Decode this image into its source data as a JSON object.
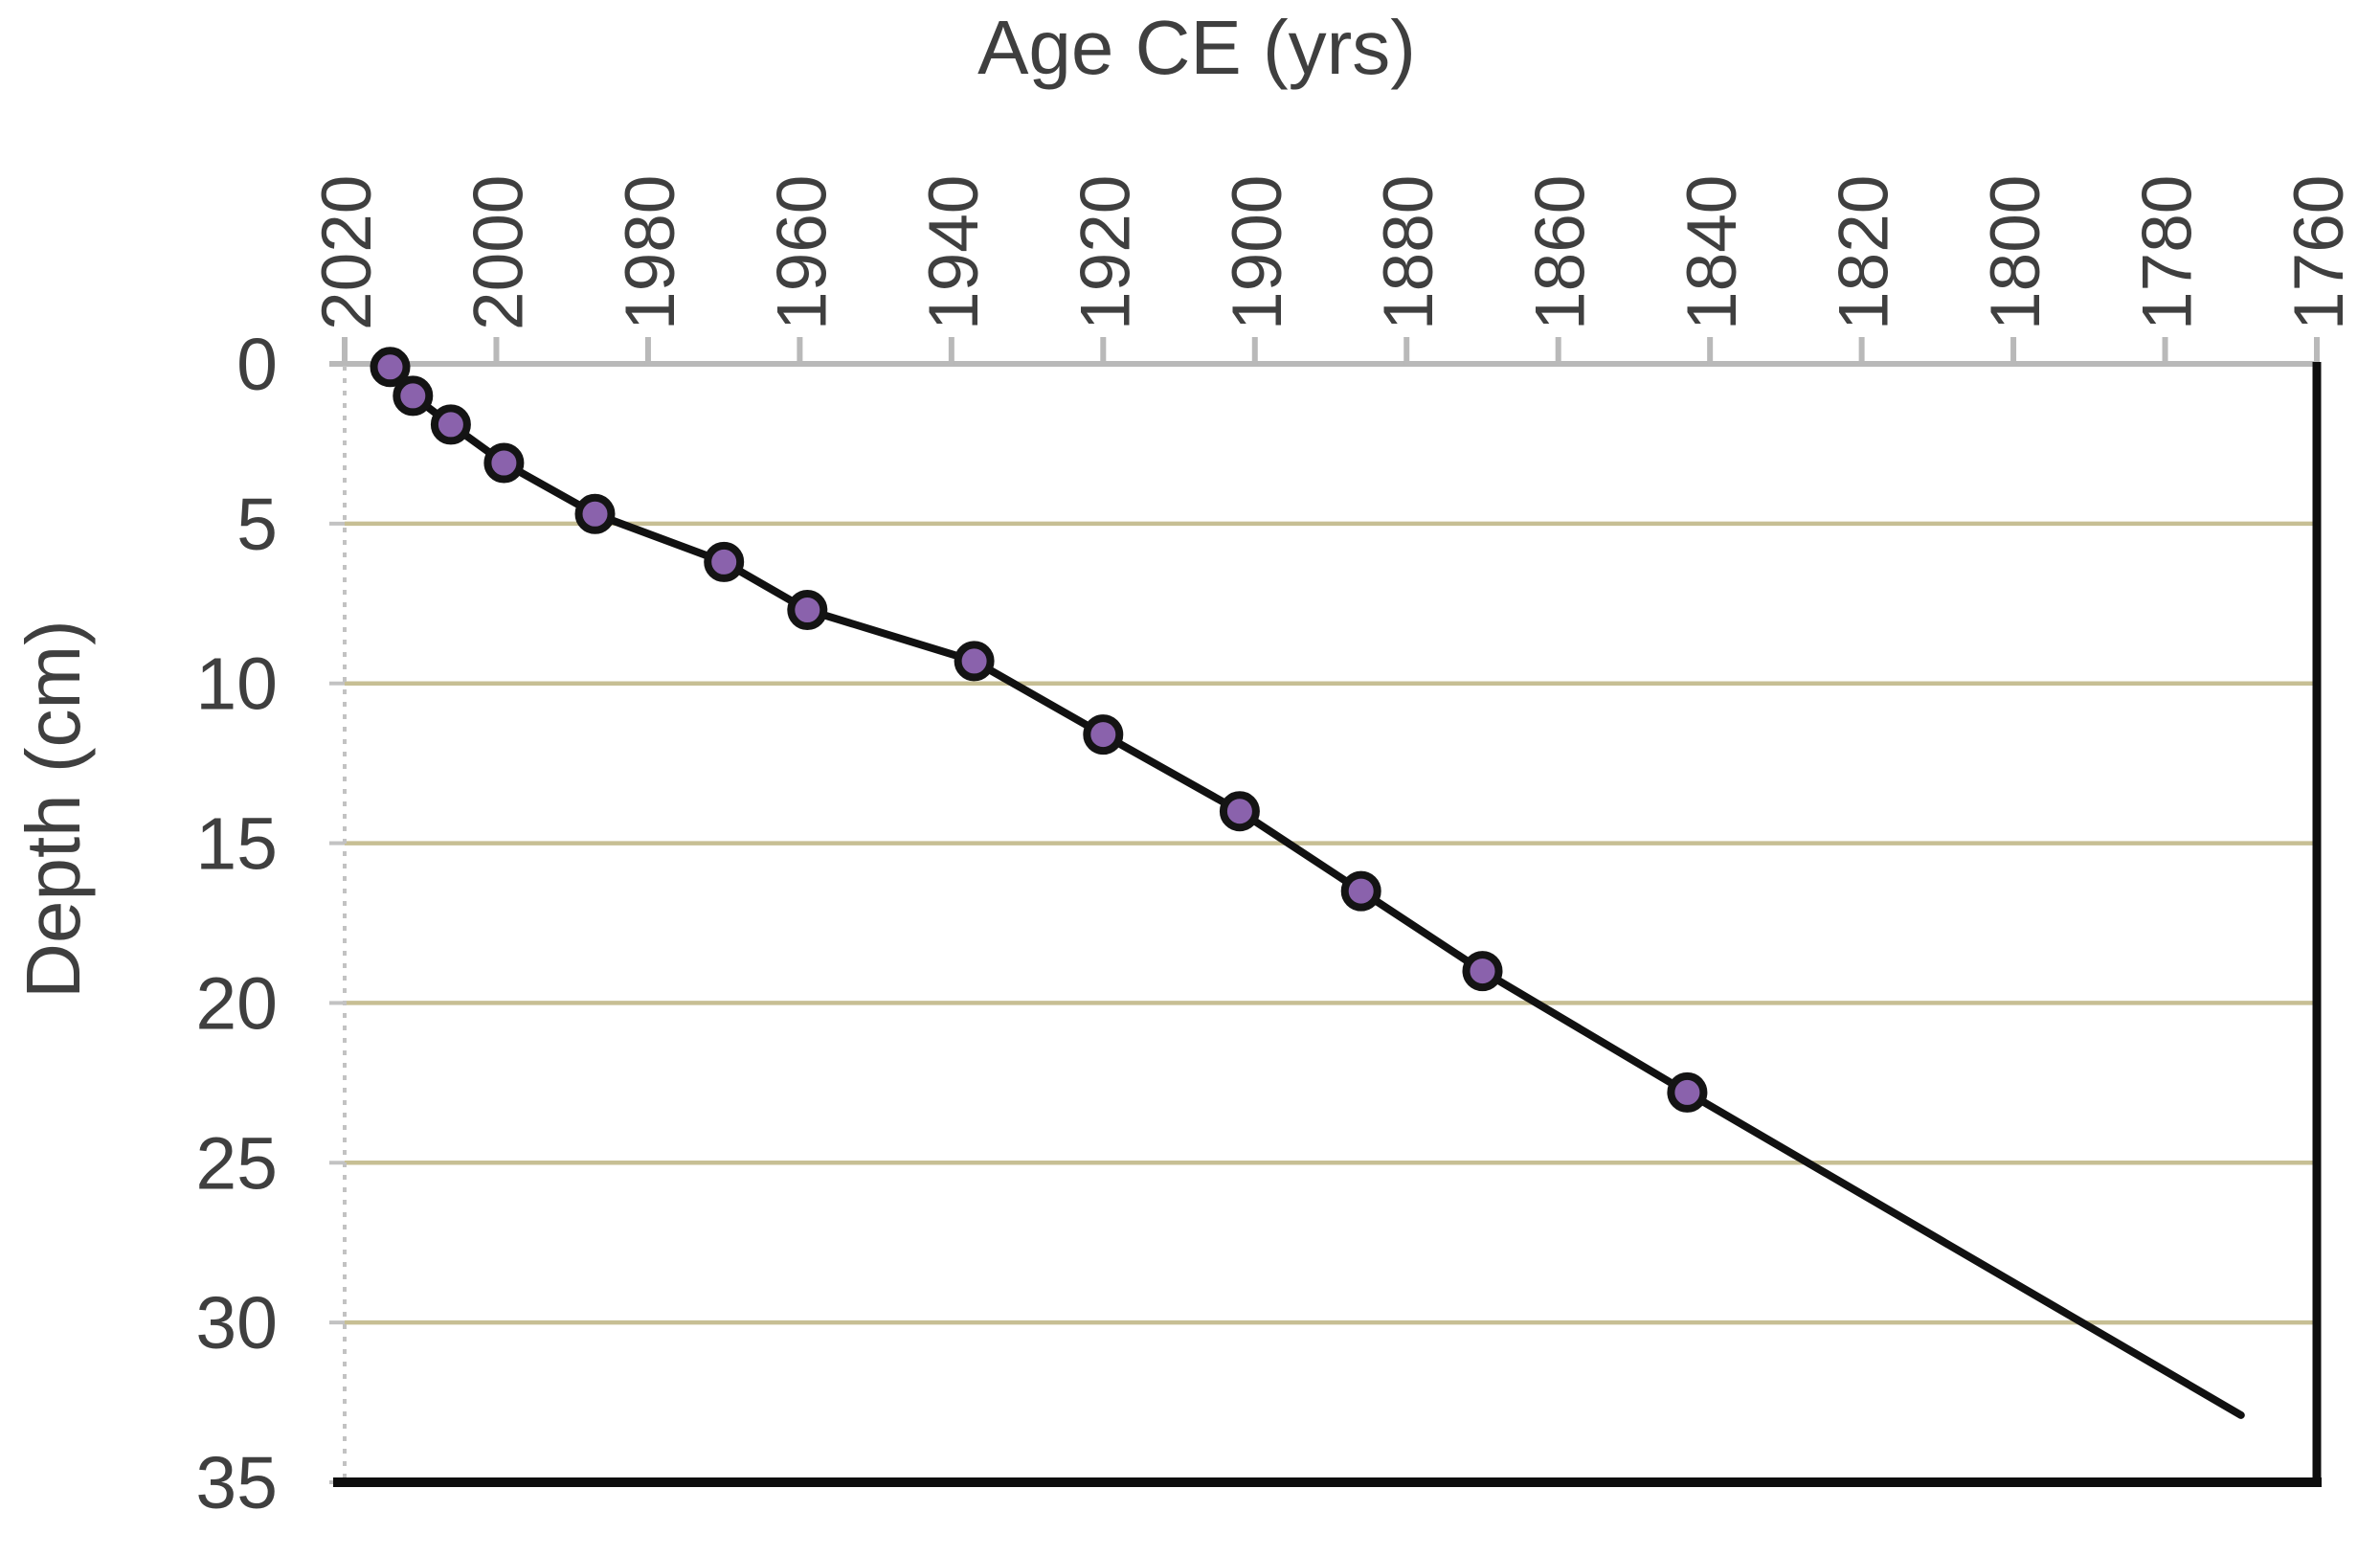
{
  "chart_data": {
    "type": "line",
    "title": "Age CE (yrs)",
    "x_axis_title": "Age CE (yrs)",
    "y_axis_title": "Depth (cm)",
    "x_axis_position": "top",
    "x_axis_reversed": true,
    "x_tick_label_rotation": -90,
    "x_ticks": [
      2020,
      2000,
      1980,
      1960,
      1940,
      1920,
      1900,
      1880,
      1860,
      1840,
      1820,
      1800,
      1780,
      1760
    ],
    "y_ticks": [
      0,
      5,
      10,
      15,
      20,
      25,
      30,
      35
    ],
    "x_range_left_to_right": [
      2020,
      1760
    ],
    "y_range_top_to_bottom": [
      0,
      35
    ],
    "grid": "horizontal gridlines every 5 cm",
    "legend": "none",
    "series": [
      {
        "name": "age-depth curve",
        "marker": "circle",
        "points_age_depth": [
          [
            2014,
            0.1
          ],
          [
            2011,
            1.0
          ],
          [
            2006,
            1.9
          ],
          [
            1999,
            3.1
          ],
          [
            1987,
            4.7
          ],
          [
            1970,
            6.2
          ],
          [
            1959,
            7.7
          ],
          [
            1937,
            9.3
          ],
          [
            1920,
            11.6
          ],
          [
            1902,
            14.0
          ],
          [
            1886,
            16.5
          ],
          [
            1870,
            19.0
          ],
          [
            1843,
            22.8
          ]
        ],
        "line_extension_no_marker": [
          1770,
          32.9
        ]
      }
    ],
    "colors": {
      "background": "#ffffff",
      "text": "#3f3f3f",
      "line": "#111111",
      "marker_fill": "#8a62ac",
      "marker_outline": "#141414",
      "gridline": "#c7bf94",
      "top_axis": "#b9b9b9",
      "left_axis": "#c2c2c2",
      "plot_border_right_bottom": "#0d0d0d"
    }
  }
}
